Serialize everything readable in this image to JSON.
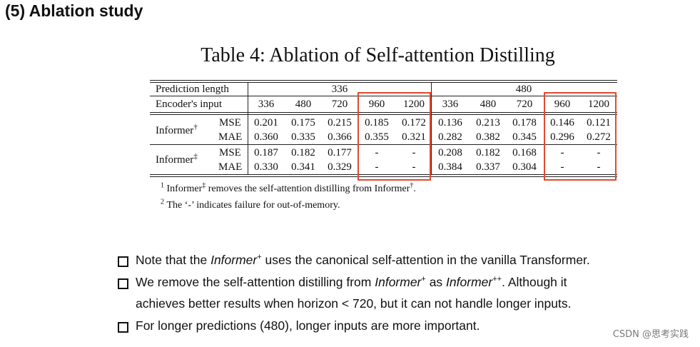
{
  "slide": {
    "heading": "(5) Ablation study",
    "table_caption": "Table 4: Ablation of Self-attention Distilling",
    "table": {
      "row_label_pred": "Prediction length",
      "row_label_enc": "Encoder's input",
      "group_336": "336",
      "group_480": "480",
      "enc_cols": [
        "336",
        "480",
        "720",
        "960",
        "1200",
        "336",
        "480",
        "720",
        "960",
        "1200"
      ],
      "model1": "Informer",
      "model1_mark": "†",
      "model2": "Informer",
      "model2_mark": "‡",
      "metric_mse": "MSE",
      "metric_mae": "MAE",
      "m1_mse": [
        "0.201",
        "0.175",
        "0.215",
        "0.185",
        "0.172",
        "0.136",
        "0.213",
        "0.178",
        "0.146",
        "0.121"
      ],
      "m1_mae": [
        "0.360",
        "0.335",
        "0.366",
        "0.355",
        "0.321",
        "0.282",
        "0.382",
        "0.345",
        "0.296",
        "0.272"
      ],
      "m2_mse": [
        "0.187",
        "0.182",
        "0.177",
        "-",
        "-",
        "0.208",
        "0.182",
        "0.168",
        "-",
        "-"
      ],
      "m2_mae": [
        "0.330",
        "0.341",
        "0.329",
        "-",
        "-",
        "0.384",
        "0.337",
        "0.304",
        "-",
        "-"
      ]
    },
    "footnote1": {
      "num": "1",
      "a": "Informer",
      "mark1": "‡",
      "b": " removes the self-attention distilling from Informer",
      "mark2": "†",
      "c": "."
    },
    "footnote2": {
      "num": "2",
      "text": "The ‘-’ indicates failure for out-of-memory."
    },
    "bullets": {
      "b1_pre": "Note that the ",
      "b1_model": "Informer",
      "b1_mark": "+",
      "b1_post": " uses the canonical self-attention in the vanilla Transformer.",
      "b2_pre": "We remove the self-attention distilling from ",
      "b2_model1": "Informer",
      "b2_mark1": "+",
      "b2_mid": " as ",
      "b2_model2": "Informer",
      "b2_mark2": "++",
      "b2_post": ". Although it",
      "b2_line2": "achieves better results when horizon < 720, but it can not handle longer inputs.",
      "b3": "For longer predictions (480), longer inputs are more important."
    },
    "highlight_color": "#e2492f"
  },
  "watermark": "CSDN @思考实践"
}
